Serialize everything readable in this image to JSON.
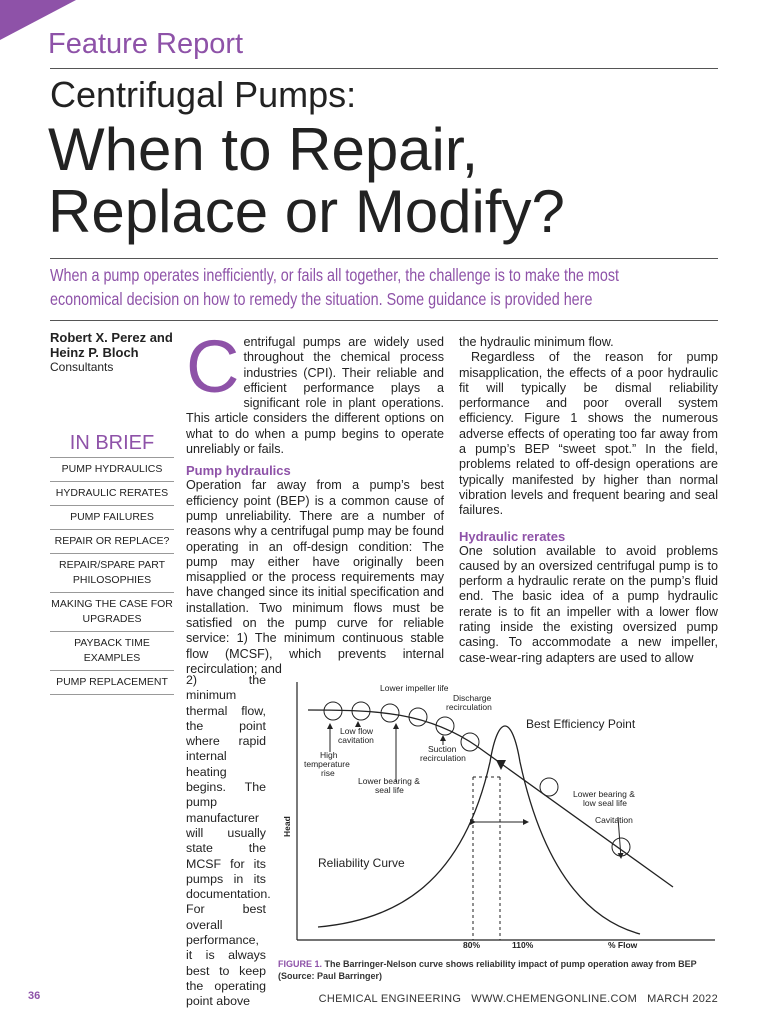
{
  "header": {
    "section": "Feature Report",
    "kicker": "Centrifugal Pumps:",
    "title_lines": [
      "When to Repair,",
      "Replace or Modify?"
    ],
    "subtitle": "When a pump operates inefficiently, or fails all together, the challenge is to make the most economical decision on how to remedy the situation. Some guidance is provided here"
  },
  "byline": {
    "authors": "Robert X. Perez and Heinz P. Bloch",
    "affiliation": "Consultants"
  },
  "in_brief": {
    "title": "IN BRIEF",
    "items": [
      "PUMP HYDRAULICS",
      "HYDRAULIC RERATES",
      "PUMP FAILURES",
      "REPAIR OR REPLACE?",
      "REPAIR/SPARE PART PHILOSOPHIES",
      "MAKING THE CASE FOR UPGRADES",
      "PAYBACK TIME EXAMPLES",
      "PUMP REPLACEMENT"
    ]
  },
  "body": {
    "col1": {
      "intro": "Centrifugal pumps are widely used throughout the chemical process industries (CPI). Their reliable and efficient performance plays a significant role in plant operations. This article considers the different options on what to do when a pump begins to operate unreliably or fails.",
      "heading": "Pump hydraulics",
      "para_a": "Operation far away from a pump’s best efficiency point (BEP) is a common cause of pump unreliability. There are a number of reasons why a centrifugal pump may be found operating in an off-design condition: The pump may either have originally been misapplied or the process requirements may have changed since its initial specification and installation. Two minimum flows must be satisfied on the pump curve for reliable service: 1) The minimum continuous stable flow (MCSF), which prevents internal recirculation; and",
      "para_b": "2) the minimum thermal flow, the point where rapid internal heating begins. The pump manufacturer will usually state the MCSF for its pumps in its documentation. For best overall performance, it is always best to keep the operating point above"
    },
    "col2": {
      "continuation": "the hydraulic minimum flow.",
      "para": "Regardless of the reason for pump misapplication, the effects of a poor hydraulic fit will typically be dismal reliability performance and poor overall system efficiency. Figure 1 shows the numerous adverse effects of operating too far away from a pump’s BEP “sweet spot.” In the field, problems related to off-design operations are typically manifested by higher than normal vibration levels and frequent bearing and seal failures.",
      "heading": "Hydraulic rerates",
      "para2": "One solution available to avoid problems caused by an oversized centrifugal pump is to perform a hydraulic rerate on the pump’s fluid end. The basic idea of a pump hydraulic rerate is to fit an impeller with a lower flow rating inside the existing oversized pump casing. To accommodate a new impeller, case-wear-ring adapters are used to allow"
    }
  },
  "figure": {
    "labels": {
      "lower_impeller_life": [
        "Lower impeller life"
      ],
      "discharge_recirculation": [
        "Discharge",
        "recirculation"
      ],
      "bep": [
        "Best Efficiency Point"
      ],
      "low_flow_cavitation": [
        "Low flow",
        "cavitation"
      ],
      "high_temperature_rise": [
        "High",
        "temperature",
        "rise"
      ],
      "suction_recirculation": [
        "Suction",
        "recirculation"
      ],
      "lower_bearing_seal_life": [
        "Lower bearing &",
        "seal life"
      ],
      "lower_bearing_low_seal_life": [
        "Lower bearing &",
        "low seal life"
      ],
      "cavitation": [
        "Cavitation"
      ],
      "reliability_curve": [
        "Reliability Curve"
      ]
    },
    "y_axis": "Head",
    "x_labels": [
      "80%",
      "110%"
    ],
    "x_axis": "% Flow",
    "caption_label": "FIGURE 1.",
    "caption": "The Barringer-Nelson curve shows reliability impact of pump operation away from BEP (Source: Paul Barringer)"
  },
  "footer": {
    "page": "36",
    "publication": "CHEMICAL ENGINEERING",
    "website": "WWW.CHEMENGONLINE.COM",
    "date": "MARCH 2022"
  }
}
